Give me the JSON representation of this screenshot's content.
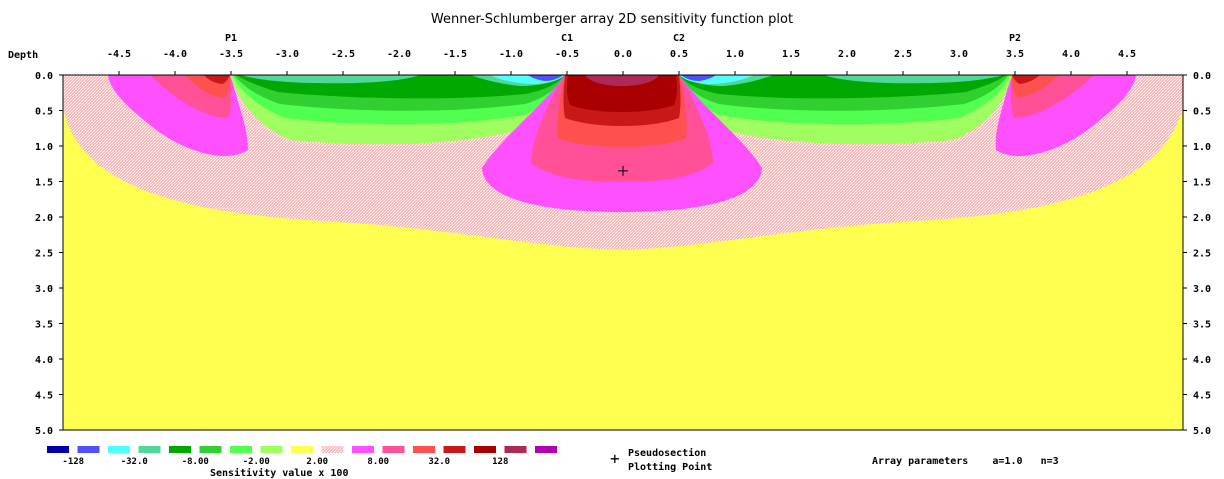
{
  "chart_data": {
    "type": "heatmap",
    "title": "Wenner-Schlumberger array 2D sensitivity function plot",
    "xlabel": "",
    "ylabel": "Depth",
    "xlim": [
      -5.0,
      5.0
    ],
    "ylim": [
      0.0,
      5.0
    ],
    "x_ticks": [
      "-4.5",
      "-4.0",
      "-3.5",
      "-3.0",
      "-2.5",
      "-2.0",
      "-1.5",
      "-1.0",
      "-0.5",
      "0.0",
      "0.5",
      "1.0",
      "1.5",
      "2.0",
      "2.5",
      "3.0",
      "3.5",
      "4.0",
      "4.5"
    ],
    "y_ticks": [
      "0.0",
      "0.5",
      "1.0",
      "1.5",
      "2.0",
      "2.5",
      "3.0",
      "3.5",
      "4.0",
      "4.5",
      "5.0"
    ],
    "electrodes": [
      {
        "label": "P1",
        "x": -3.5
      },
      {
        "label": "C1",
        "x": -0.5
      },
      {
        "label": "C2",
        "x": 0.5
      },
      {
        "label": "P2",
        "x": 3.5
      }
    ],
    "plotting_point": {
      "x": 0.0,
      "depth": 1.35
    },
    "legend": {
      "title": "Sensitivity value x 100",
      "colors": [
        "#0000a8",
        "#5050ff",
        "#50ffff",
        "#50d898",
        "#00a800",
        "#30d030",
        "#50ff50",
        "#a0ff60",
        "#ffff50",
        "#ffb0b0",
        "#ff50ff",
        "#ff5098",
        "#ff5050",
        "#c81818",
        "#a80000",
        "#b02858",
        "#b000b0"
      ],
      "labels": [
        "-128",
        "-32.0",
        "-8.00",
        "-2.00",
        "2.00",
        "8.00",
        "32.0",
        "128"
      ]
    }
  },
  "caption": {
    "pseudosection_line1": "Pseudosection",
    "pseudosection_line2": "Plotting Point",
    "array_params": "Array parameters    a=1.0   n=3"
  }
}
